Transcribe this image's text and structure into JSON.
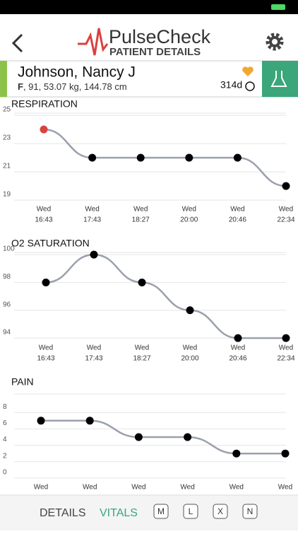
{
  "header": {
    "title": "PulseCheck",
    "subtitle": "PATIENT DETAILS"
  },
  "patient": {
    "name": "Johnson, Nancy J",
    "sex": "F",
    "details": ", 91, 53.07 kg, 144.78 cm",
    "days": "314d"
  },
  "chart_data": [
    {
      "type": "line",
      "title": "RESPIRATION",
      "categories": [
        "Wed",
        "Wed",
        "Wed",
        "Wed",
        "Wed",
        "Wed"
      ],
      "times": [
        "16:43",
        "17:43",
        "18:27",
        "20:00",
        "20:46",
        "22:34"
      ],
      "values": [
        24,
        22,
        22,
        22,
        22,
        20
      ],
      "point_colors": [
        "#d9423f",
        "#000000",
        "#000000",
        "#000000",
        "#000000",
        "#000000"
      ],
      "color": "#9aa1ad",
      "ylim": [
        19,
        25
      ],
      "yticks": [
        19,
        21,
        23,
        25
      ],
      "grid": true
    },
    {
      "type": "line",
      "title": "O2 SATURATION",
      "categories": [
        "Wed",
        "Wed",
        "Wed",
        "Wed",
        "Wed",
        "Wed"
      ],
      "times": [
        "16:43",
        "17:43",
        "18:27",
        "20:00",
        "20:46",
        "22:34"
      ],
      "values": [
        98,
        100,
        98,
        96,
        94,
        94
      ],
      "point_colors": [
        "#000000",
        "#000000",
        "#000000",
        "#000000",
        "#000000",
        "#000000"
      ],
      "color": "#9aa1ad",
      "ylim": [
        94,
        100
      ],
      "yticks": [
        94,
        96,
        98,
        100
      ],
      "grid": true
    },
    {
      "type": "line",
      "title": "PAIN",
      "categories": [
        "Wed",
        "Wed",
        "Wed",
        "Wed",
        "Wed",
        "Wed"
      ],
      "values": [
        7,
        7,
        5,
        5,
        3,
        3
      ],
      "point_colors": [
        "#000000",
        "#000000",
        "#000000",
        "#000000",
        "#000000",
        "#000000"
      ],
      "color": "#9aa1ad",
      "ylim": [
        0,
        10
      ],
      "yticks": [
        0,
        2,
        4,
        6,
        8
      ],
      "grid": true
    }
  ],
  "footer": {
    "tabs": [
      "DETAILS",
      "VITALS"
    ],
    "buttons": [
      "M",
      "L",
      "X",
      "N"
    ]
  }
}
